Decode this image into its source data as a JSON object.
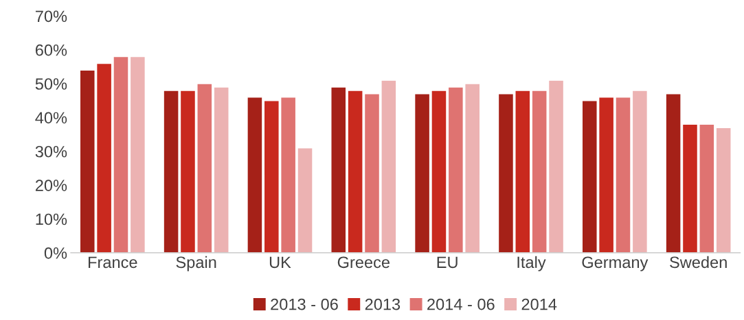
{
  "chart_data": {
    "type": "bar",
    "categories": [
      "France",
      "Spain",
      "UK",
      "Greece",
      "EU",
      "Italy",
      "Germany",
      "Sweden"
    ],
    "series": [
      {
        "name": "2013 - 06",
        "color": "#a52118",
        "values": [
          54,
          48,
          46,
          49,
          47,
          47,
          45,
          47
        ]
      },
      {
        "name": "2013",
        "color": "#c9291e",
        "values": [
          56,
          48,
          45,
          48,
          48,
          48,
          46,
          38
        ]
      },
      {
        "name": "2014 - 06",
        "color": "#df7371",
        "values": [
          58,
          50,
          46,
          47,
          49,
          48,
          46,
          38
        ]
      },
      {
        "name": "2014",
        "color": "#ecb2b2",
        "values": [
          58,
          49,
          31,
          51,
          50,
          51,
          48,
          37
        ]
      }
    ],
    "ylim": [
      0,
      70
    ],
    "yticks": [
      {
        "value": 0,
        "label": "0%"
      },
      {
        "value": 10,
        "label": "10%"
      },
      {
        "value": 20,
        "label": "20%"
      },
      {
        "value": 30,
        "label": "30%"
      },
      {
        "value": 40,
        "label": "40%"
      },
      {
        "value": 50,
        "label": "50%"
      },
      {
        "value": 60,
        "label": "60%"
      },
      {
        "value": 70,
        "label": "70%"
      }
    ],
    "grid": false,
    "legend": "bottom"
  }
}
